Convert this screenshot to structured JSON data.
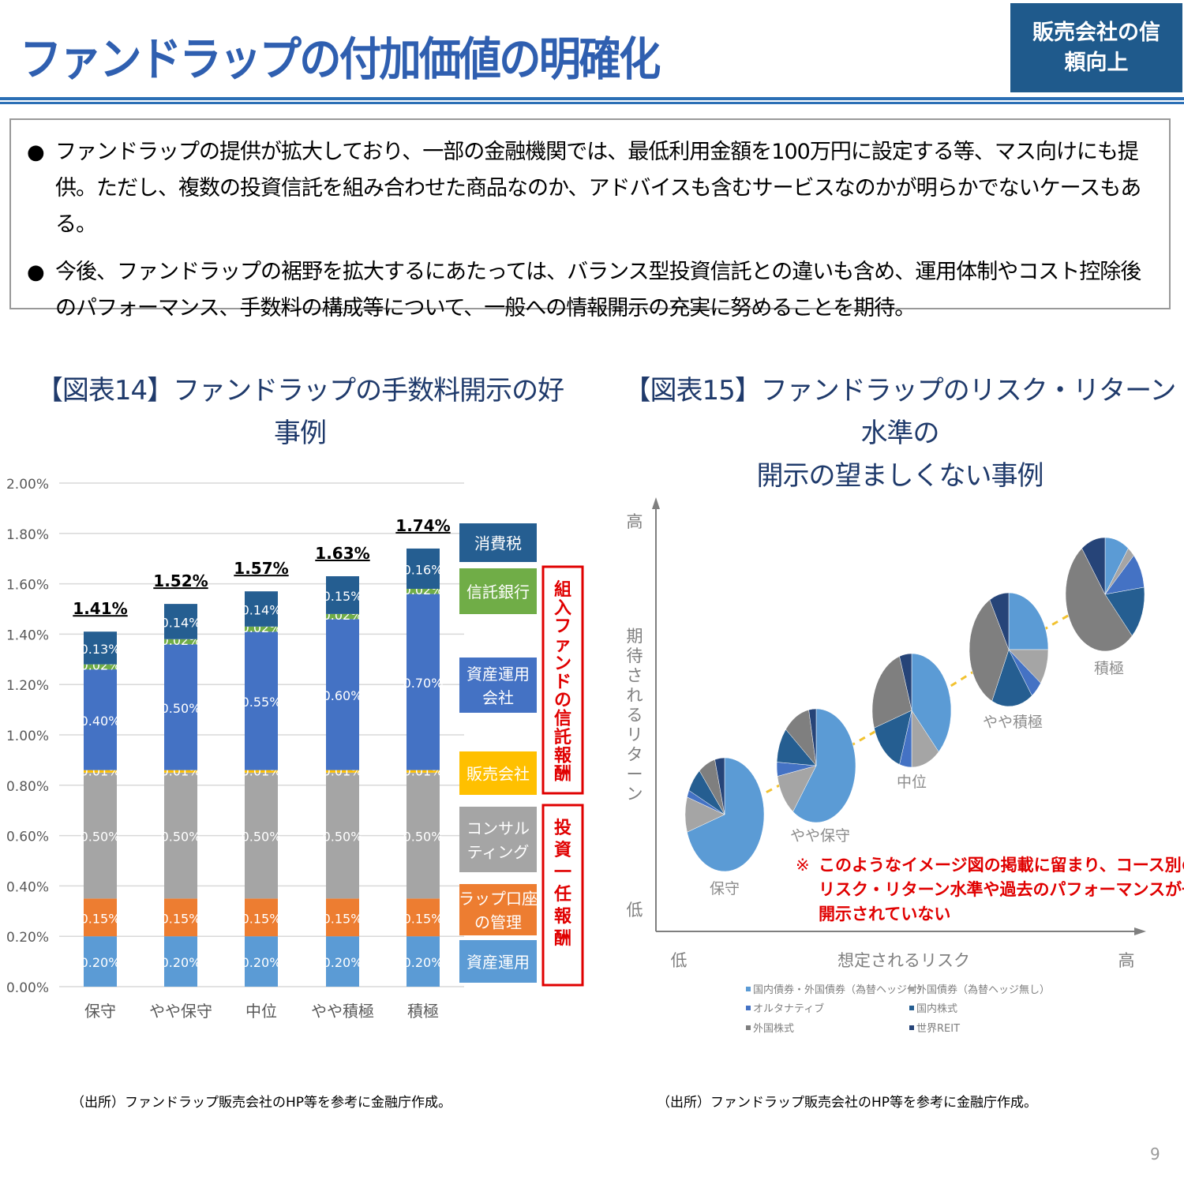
{
  "header": {
    "title": "ファンドラップの付加価値の明確化",
    "badge": "販売会社の信頼向上"
  },
  "bullets": [
    "ファンドラップの提供が拡大しており、一部の金融機関では、最低利用金額を100万円に設定する等、マス向けにも提供。ただし、複数の投資信託を組み合わせた商品なのか、アドバイスも含むサービスなのかが明らかでないケースもある。",
    "今後、ファンドラップの裾野を拡大するにあたっては、バランス型投資信託との違いも含め、運用体制やコスト控除後のパフォーマンス、手数料の構成等について、一般への情報開示の充実に努めることを期待。"
  ],
  "bullet_icon": "filled-circle",
  "chart_data": [
    {
      "type": "bar",
      "stacked": true,
      "title": "【図表14】ファンドラップの手数料開示の好事例",
      "categories": [
        "保守",
        "やや保守",
        "中位",
        "やや積極",
        "積極"
      ],
      "ylim": [
        0,
        2.0
      ],
      "yticks": [
        "0.00%",
        "0.20%",
        "0.40%",
        "0.60%",
        "0.80%",
        "1.00%",
        "1.20%",
        "1.40%",
        "1.60%",
        "1.80%",
        "2.00%"
      ],
      "grid": true,
      "totals": [
        "1.41%",
        "1.52%",
        "1.57%",
        "1.63%",
        "1.74%"
      ],
      "series": [
        {
          "name": "資産運用",
          "color": "#5b9bd5",
          "values": [
            0.2,
            0.2,
            0.2,
            0.2,
            0.2
          ],
          "labels": [
            "0.20%",
            "0.20%",
            "0.20%",
            "0.20%",
            "0.20%"
          ]
        },
        {
          "name": "ラップ口座の管理",
          "color": "#ed7d31",
          "values": [
            0.15,
            0.15,
            0.15,
            0.15,
            0.15
          ],
          "labels": [
            "0.15%",
            "0.15%",
            "0.15%",
            "0.15%",
            "0.15%"
          ]
        },
        {
          "name": "コンサルティング",
          "color": "#a5a5a5",
          "values": [
            0.5,
            0.5,
            0.5,
            0.5,
            0.5
          ],
          "labels": [
            "0.50%",
            "0.50%",
            "0.50%",
            "0.50%",
            "0.50%"
          ]
        },
        {
          "name": "販売会社",
          "color": "#ffc000",
          "values": [
            0.01,
            0.01,
            0.01,
            0.01,
            0.01
          ],
          "labels": [
            "0.01%",
            "0.01%",
            "0.01%",
            "0.01%",
            "0.01%"
          ]
        },
        {
          "name": "資産運用会社",
          "color": "#4472c4",
          "values": [
            0.4,
            0.5,
            0.55,
            0.6,
            0.7
          ],
          "labels": [
            "0.40%",
            "0.50%",
            "0.55%",
            "0.60%",
            "0.70%"
          ]
        },
        {
          "name": "信託銀行",
          "color": "#70ad47",
          "values": [
            0.02,
            0.02,
            0.02,
            0.02,
            0.02
          ],
          "labels": [
            "0.02%",
            "0.02%",
            "0.02%",
            "0.02%",
            "0.02%"
          ]
        },
        {
          "name": "消費税",
          "color": "#255e91",
          "values": [
            0.13,
            0.14,
            0.14,
            0.15,
            0.16
          ],
          "labels": [
            "0.13%",
            "0.14%",
            "0.14%",
            "0.15%",
            "0.16%"
          ]
        }
      ],
      "legend": [
        "消費税",
        "信託銀行",
        "資産運用\n会社",
        "販売会社",
        "コンサル\nティング",
        "ラップ口座\nの管理",
        "資産運用"
      ],
      "brackets": [
        {
          "label": "組入ファンドの信託報酬",
          "color": "#e00000"
        },
        {
          "label": "投資一任報酬",
          "color": "#e00000"
        }
      ],
      "source": "（出所）ファンドラップ販売会社のHP等を参考に金融庁作成。"
    },
    {
      "type": "pie",
      "title": "【図表15】ファンドラップのリスク・リターン水準の\n開示の望ましくない事例",
      "xlabel": "想定されるリスク",
      "ylabel": "期待されるリターン",
      "x_low": "低",
      "x_high": "高",
      "y_low": "低",
      "y_high": "高",
      "categories": [
        "国内債券・外国債券（為替ヘッジ付）",
        "外国債券（為替ヘッジ無し）",
        "オルタナティブ",
        "国内株式",
        "外国株式",
        "世界REIT"
      ],
      "colors": [
        "#5b9bd5",
        "#a5a5a5",
        "#4472c4",
        "#255e91",
        "#7f7f7f",
        "#264478"
      ],
      "pies": [
        {
          "name": "保守",
          "values": [
            70,
            10,
            2,
            7,
            7,
            4
          ]
        },
        {
          "name": "やや保守",
          "values": [
            60,
            12,
            4,
            10,
            11,
            3
          ]
        },
        {
          "name": "中位",
          "values": [
            38,
            12,
            5,
            15,
            25,
            5
          ]
        },
        {
          "name": "やや積極",
          "values": [
            25,
            10,
            5,
            17,
            35,
            8
          ]
        },
        {
          "name": "積極",
          "values": [
            10,
            3,
            10,
            15,
            52,
            10
          ]
        }
      ],
      "trend_line_color": "#f2c230",
      "note_mark": "※",
      "note": "このようなイメージ図の掲載に留まり、コース別の\nリスク・リターン水準や過去のパフォーマンスが一般に\n開示されていない",
      "source": "（出所）ファンドラップ販売会社のHP等を参考に金融庁作成。"
    }
  ],
  "page_number": "9"
}
